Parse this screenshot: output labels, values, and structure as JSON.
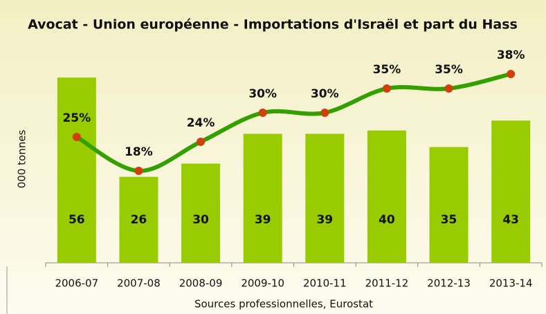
{
  "chart_data": {
    "type": "combo",
    "title": "Avocat - Union européenne - Importations d'Israël et part du Hass",
    "y_label": "000 tonnes",
    "source": "Sources professionnelles, Eurostat",
    "categories": [
      "2006-07",
      "2007-08",
      "2008-09",
      "2009-10",
      "2010-11",
      "2011-12",
      "2012-13",
      "2013-14"
    ],
    "ylim": [
      0,
      60
    ],
    "y2lim": [
      -1,
      40
    ],
    "series": [
      {
        "type": "bar",
        "color": "#99cc00",
        "values": [
          56,
          26,
          30,
          39,
          39,
          40,
          35,
          43
        ]
      },
      {
        "type": "line",
        "axis": "y2",
        "color": "#33a000",
        "marker_color": "#d0400f",
        "values": [
          25,
          18,
          24,
          30,
          30,
          35,
          35,
          38
        ],
        "value_labels": [
          "25%",
          "18%",
          "24%",
          "30%",
          "30%",
          "35%",
          "35%",
          "38%"
        ]
      }
    ]
  }
}
